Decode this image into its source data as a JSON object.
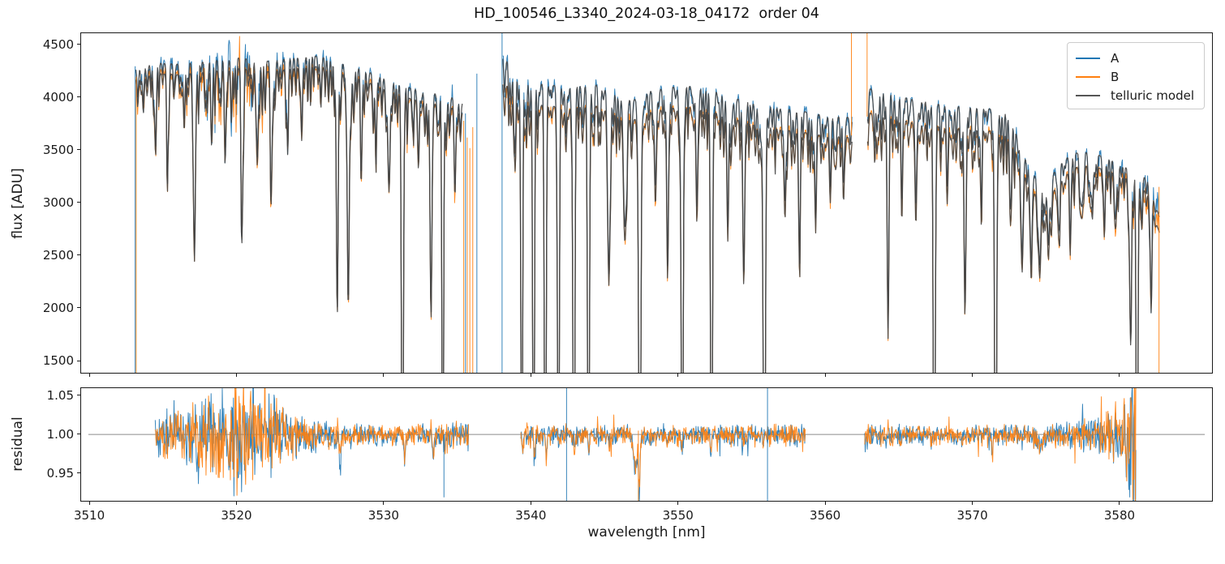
{
  "chart_data": {
    "type": "line",
    "title": "HD_100546_L3340_2024-03-18_04172  order 04",
    "xlabel": "wavelength [nm]",
    "grid": false,
    "colors": {
      "A": "#1f77b4",
      "B": "#ff7f0e",
      "telluric": "#454545",
      "hline": "#808080",
      "axes": "#1a1a1a"
    },
    "legend": {
      "position": "upper right",
      "entries": [
        {
          "label": "A",
          "color": "#1f77b4"
        },
        {
          "label": "B",
          "color": "#ff7f0e"
        },
        {
          "label": "telluric model",
          "color": "#555555"
        }
      ]
    },
    "panels": [
      {
        "id": "flux",
        "ylabel": "flux [ADU]",
        "xlim": [
          3509.39,
          3586.34
        ],
        "ylim": [
          1377,
          4615
        ],
        "yticks": [
          {
            "v": 1500,
            "label": "1500"
          },
          {
            "v": 2000,
            "label": "2000"
          },
          {
            "v": 2500,
            "label": "2500"
          },
          {
            "v": 3000,
            "label": "3000"
          },
          {
            "v": 3500,
            "label": "3500"
          },
          {
            "v": 4000,
            "label": "4000"
          },
          {
            "v": 4500,
            "label": "4500"
          }
        ],
        "xticks": [
          {
            "v": 3510,
            "label": "3510"
          },
          {
            "v": 3520,
            "label": "3520"
          },
          {
            "v": 3530,
            "label": "3530"
          },
          {
            "v": 3540,
            "label": "3540"
          },
          {
            "v": 3550,
            "label": "3550"
          },
          {
            "v": 3560,
            "label": "3560"
          },
          {
            "v": 3570,
            "label": "3570"
          },
          {
            "v": 3580,
            "label": "3580"
          }
        ],
        "show_xtick_labels": false
      },
      {
        "id": "residual",
        "ylabel": "residual",
        "xlim": [
          3509.39,
          3586.34
        ],
        "ylim": [
          0.9135,
          1.0604
        ],
        "hline": 1.0,
        "yticks": [
          {
            "v": 0.95,
            "label": "0.95"
          },
          {
            "v": 1.0,
            "label": "1.00"
          },
          {
            "v": 1.05,
            "label": "1.05"
          }
        ],
        "xticks": [
          {
            "v": 3510,
            "label": "3510"
          },
          {
            "v": 3520,
            "label": "3520"
          },
          {
            "v": 3530,
            "label": "3530"
          },
          {
            "v": 3540,
            "label": "3540"
          },
          {
            "v": 3550,
            "label": "3550"
          },
          {
            "v": 3560,
            "label": "3560"
          },
          {
            "v": 3570,
            "label": "3570"
          },
          {
            "v": 3580,
            "label": "3580"
          }
        ],
        "show_xtick_labels": true
      }
    ],
    "flux_segments": [
      {
        "range": [
          3513.0,
          3535.3
        ],
        "continuum_A": [
          [
            3513.0,
            4280
          ],
          [
            3514.5,
            4330
          ],
          [
            3516,
            4320
          ],
          [
            3518,
            4350
          ],
          [
            3520,
            4380
          ],
          [
            3522,
            4350
          ],
          [
            3524,
            4380
          ],
          [
            3525.5,
            4400
          ],
          [
            3527,
            4330
          ],
          [
            3528.5,
            4270
          ],
          [
            3530,
            4180
          ],
          [
            3531.5,
            4100
          ],
          [
            3533,
            4050
          ],
          [
            3534.3,
            4020
          ],
          [
            3535.3,
            3950
          ]
        ],
        "continuum_B": [
          [
            3513.0,
            4180
          ],
          [
            3514.5,
            4230
          ],
          [
            3516,
            4220
          ],
          [
            3518,
            4250
          ],
          [
            3520,
            4280
          ],
          [
            3522,
            4250
          ],
          [
            3524,
            4280
          ],
          [
            3525.5,
            4300
          ],
          [
            3527,
            4230
          ],
          [
            3528.5,
            4170
          ],
          [
            3530,
            4080
          ],
          [
            3531.5,
            4000
          ],
          [
            3533,
            3950
          ],
          [
            3534.3,
            3920
          ],
          [
            3535.3,
            3860
          ]
        ]
      },
      {
        "range": [
          3538.05,
          3561.9
        ],
        "continuum_A": [
          [
            3538.05,
            4400
          ],
          [
            3538.6,
            4300
          ],
          [
            3539.3,
            4180
          ],
          [
            3541,
            4120
          ],
          [
            3543,
            4110
          ],
          [
            3544.5,
            4120
          ],
          [
            3546,
            4020
          ],
          [
            3547,
            3980
          ],
          [
            3548,
            4060
          ],
          [
            3549.5,
            4100
          ],
          [
            3551,
            4110
          ],
          [
            3552.5,
            4060
          ],
          [
            3554,
            3990
          ],
          [
            3555.5,
            3950
          ],
          [
            3557,
            3900
          ],
          [
            3558.5,
            3870
          ],
          [
            3560,
            3830
          ],
          [
            3561.9,
            3810
          ]
        ],
        "continuum_B": [
          [
            3538.05,
            4150
          ],
          [
            3538.6,
            4080
          ],
          [
            3539.3,
            3980
          ],
          [
            3541,
            3920
          ],
          [
            3543,
            3910
          ],
          [
            3544.5,
            3920
          ],
          [
            3546,
            3830
          ],
          [
            3547,
            3790
          ],
          [
            3548,
            3860
          ],
          [
            3549.5,
            3900
          ],
          [
            3551,
            3910
          ],
          [
            3552.5,
            3860
          ],
          [
            3554,
            3790
          ],
          [
            3555.5,
            3750
          ],
          [
            3557,
            3700
          ],
          [
            3558.5,
            3670
          ],
          [
            3560,
            3640
          ],
          [
            3561.9,
            3620
          ]
        ]
      },
      {
        "range": [
          3562.95,
          3582.9
        ],
        "continuum_A": [
          [
            3562.95,
            4090
          ],
          [
            3564,
            4060
          ],
          [
            3565.5,
            4000
          ],
          [
            3567,
            3960
          ],
          [
            3568.5,
            3920
          ],
          [
            3570,
            3910
          ],
          [
            3571.5,
            3890
          ],
          [
            3572.5,
            3840
          ],
          [
            3573.3,
            3600
          ],
          [
            3574,
            3300
          ],
          [
            3574.8,
            3200
          ],
          [
            3575.5,
            3250
          ],
          [
            3576.3,
            3400
          ],
          [
            3577,
            3470
          ],
          [
            3578,
            3480
          ],
          [
            3579,
            3440
          ],
          [
            3580,
            3380
          ],
          [
            3581,
            3300
          ],
          [
            3582,
            3230
          ],
          [
            3582.9,
            2850
          ]
        ],
        "continuum_B": [
          [
            3562.95,
            3860
          ],
          [
            3564,
            3830
          ],
          [
            3565.5,
            3780
          ],
          [
            3567,
            3740
          ],
          [
            3568.5,
            3710
          ],
          [
            3570,
            3700
          ],
          [
            3571.5,
            3680
          ],
          [
            3572.5,
            3630
          ],
          [
            3573.3,
            3420
          ],
          [
            3574,
            3130
          ],
          [
            3574.8,
            3030
          ],
          [
            3575.5,
            3080
          ],
          [
            3576.3,
            3230
          ],
          [
            3577,
            3330
          ],
          [
            3578,
            3350
          ],
          [
            3579,
            3320
          ],
          [
            3580,
            3270
          ],
          [
            3581,
            3200
          ],
          [
            3582,
            3100
          ],
          [
            3582.9,
            2700
          ]
        ]
      }
    ],
    "telluric_lines": [
      [
        3514.35,
        0.12,
        0.055
      ],
      [
        3515.15,
        0.2,
        0.05
      ],
      [
        3516.3,
        0.13,
        0.05
      ],
      [
        3517.0,
        0.42,
        0.065
      ],
      [
        3518.2,
        0.14,
        0.05
      ],
      [
        3519.1,
        0.17,
        0.05
      ],
      [
        3520.25,
        0.34,
        0.065
      ],
      [
        3521.3,
        0.2,
        0.055
      ],
      [
        3522.25,
        0.25,
        0.06
      ],
      [
        3523.35,
        0.14,
        0.05
      ],
      [
        3524.3,
        0.11,
        0.05
      ],
      [
        3526.75,
        0.48,
        0.06
      ],
      [
        3527.5,
        0.53,
        0.065
      ],
      [
        3528.4,
        0.18,
        0.055
      ],
      [
        3529.4,
        0.12,
        0.05
      ],
      [
        3530.3,
        0.22,
        0.06
      ],
      [
        3531.2,
        1.15,
        0.06
      ],
      [
        3532.3,
        0.15,
        0.05
      ],
      [
        3533.15,
        0.52,
        0.06
      ],
      [
        3533.95,
        1.15,
        0.05
      ],
      [
        3534.8,
        0.16,
        0.05
      ],
      [
        3538.9,
        0.18,
        0.05
      ],
      [
        3539.35,
        1.15,
        0.05
      ],
      [
        3540.15,
        1.15,
        0.055
      ],
      [
        3540.95,
        1.15,
        0.055
      ],
      [
        3541.85,
        1.15,
        0.055
      ],
      [
        3542.9,
        1.15,
        0.06
      ],
      [
        3543.9,
        1.15,
        0.06
      ],
      [
        3545.3,
        0.42,
        0.07
      ],
      [
        3546.4,
        0.3,
        0.1
      ],
      [
        3547.4,
        1.15,
        0.07
      ],
      [
        3548.5,
        0.15,
        0.06
      ],
      [
        3549.3,
        0.42,
        0.06
      ],
      [
        3550.3,
        1.15,
        0.06
      ],
      [
        3551.3,
        0.28,
        0.06
      ],
      [
        3552.3,
        1.15,
        0.06
      ],
      [
        3553.4,
        0.2,
        0.06
      ],
      [
        3554.5,
        0.35,
        0.07
      ],
      [
        3555.9,
        1.15,
        0.07
      ],
      [
        3557.3,
        0.2,
        0.06
      ],
      [
        3558.3,
        0.3,
        0.06
      ],
      [
        3559.4,
        0.18,
        0.06
      ],
      [
        3560.4,
        0.13,
        0.06
      ],
      [
        3561.3,
        0.11,
        0.05
      ],
      [
        3563.6,
        0.1,
        0.05
      ],
      [
        3564.35,
        0.52,
        0.06
      ],
      [
        3565.3,
        0.18,
        0.055
      ],
      [
        3566.25,
        0.26,
        0.06
      ],
      [
        3567.5,
        1.15,
        0.06
      ],
      [
        3568.4,
        0.18,
        0.055
      ],
      [
        3569.6,
        0.48,
        0.06
      ],
      [
        3570.7,
        0.17,
        0.055
      ],
      [
        3571.7,
        1.15,
        0.06
      ],
      [
        3572.7,
        0.22,
        0.06
      ],
      [
        3573.5,
        0.3,
        0.07
      ],
      [
        3574.1,
        0.2,
        0.07
      ],
      [
        3574.7,
        0.24,
        0.07
      ],
      [
        3575.3,
        0.2,
        0.07
      ],
      [
        3576.0,
        0.16,
        0.065
      ],
      [
        3576.8,
        0.13,
        0.06
      ],
      [
        3577.6,
        0.14,
        0.06
      ],
      [
        3578.3,
        0.15,
        0.06
      ],
      [
        3579.1,
        0.13,
        0.06
      ],
      [
        3579.9,
        0.15,
        0.06
      ],
      [
        3580.9,
        0.45,
        0.065
      ],
      [
        3581.35,
        1.15,
        0.055
      ],
      [
        3582.3,
        0.28,
        0.06
      ]
    ],
    "micro_lines": {
      "spacing": 0.22,
      "depth_min": 0.02,
      "depth_max": 0.12,
      "sigma_min": 0.03,
      "sigma_max": 0.055,
      "seed": 42
    },
    "noise": {
      "flux_step": 0.04,
      "seed_A": 101,
      "seed_B": 202,
      "amp_B_scale": 0.85,
      "flux_amp_A": [
        [
          3513,
          70
        ],
        [
          3515,
          60
        ],
        [
          3516.5,
          90
        ],
        [
          3518,
          150
        ],
        [
          3519.5,
          190
        ],
        [
          3521,
          190
        ],
        [
          3522,
          120
        ],
        [
          3523.5,
          70
        ],
        [
          3525,
          55
        ],
        [
          3527,
          45
        ],
        [
          3530,
          42
        ],
        [
          3533,
          45
        ],
        [
          3535.3,
          70
        ],
        [
          3538.05,
          80
        ],
        [
          3539.5,
          55
        ],
        [
          3542,
          45
        ],
        [
          3546,
          42
        ],
        [
          3550,
          42
        ],
        [
          3554,
          42
        ],
        [
          3558,
          45
        ],
        [
          3561.9,
          60
        ],
        [
          3563,
          60
        ],
        [
          3566,
          45
        ],
        [
          3570,
          42
        ],
        [
          3573,
          45
        ],
        [
          3576,
          48
        ],
        [
          3578,
          52
        ],
        [
          3579.5,
          60
        ],
        [
          3581,
          90
        ],
        [
          3582.9,
          160
        ]
      ],
      "residual_step": 0.035,
      "res_seed_A": 303,
      "res_seed_B": 404,
      "residual_amp": [
        [
          3514,
          0.016
        ],
        [
          3515.5,
          0.022
        ],
        [
          3517,
          0.032
        ],
        [
          3518.5,
          0.042
        ],
        [
          3520,
          0.05
        ],
        [
          3521.5,
          0.045
        ],
        [
          3523,
          0.022
        ],
        [
          3524.5,
          0.014
        ],
        [
          3526,
          0.011
        ],
        [
          3528,
          0.009
        ],
        [
          3531,
          0.009
        ],
        [
          3533.5,
          0.01
        ],
        [
          3535.6,
          0.013
        ],
        [
          3539.2,
          0.012
        ],
        [
          3541,
          0.009
        ],
        [
          3544,
          0.008
        ],
        [
          3548,
          0.009
        ],
        [
          3552,
          0.009
        ],
        [
          3556,
          0.009
        ],
        [
          3558.8,
          0.01
        ],
        [
          3562.9,
          0.011
        ],
        [
          3565,
          0.009
        ],
        [
          3569,
          0.008
        ],
        [
          3573,
          0.009
        ],
        [
          3575.5,
          0.01
        ],
        [
          3577.5,
          0.012
        ],
        [
          3579,
          0.016
        ],
        [
          3580.3,
          0.03
        ],
        [
          3581,
          0.05
        ],
        [
          3581.6,
          0.065
        ]
      ]
    },
    "residual_segments": [
      [
        3514.0,
        3535.6
      ],
      [
        3539.2,
        3558.8
      ],
      [
        3562.9,
        3581.6
      ]
    ],
    "residual_dips": [
      {
        "x": 3547.1,
        "d": 0.045,
        "s": 0.14
      },
      {
        "x": 3547.35,
        "d": 0.05,
        "s": 0.045
      },
      {
        "x": 3575.0,
        "d": 0.012,
        "s": 0.2
      }
    ],
    "flux_spikes": [
      {
        "w": 3512.95,
        "series": "A",
        "y1": "min",
        "y2": 4300
      },
      {
        "w": 3513.02,
        "series": "B",
        "y1": "min",
        "y2": 4200
      },
      {
        "w": 3535.38,
        "series": "B",
        "y1": "min",
        "y2": 3780
      },
      {
        "w": 3535.5,
        "series": "A",
        "y1": "min",
        "y2": 3850
      },
      {
        "w": 3535.62,
        "series": "B",
        "y1": "min",
        "y2": 3620
      },
      {
        "w": 3535.8,
        "series": "B",
        "y1": "min",
        "y2": 3520
      },
      {
        "w": 3536.0,
        "series": "B",
        "y1": "min",
        "y2": 3720
      },
      {
        "w": 3536.28,
        "series": "A",
        "y1": "min",
        "y2": 4230
      },
      {
        "w": 3538.0,
        "series": "A",
        "y1": "min",
        "y2": "max"
      },
      {
        "w": 3561.85,
        "series": "B",
        "y1": 3640,
        "y2": "max"
      },
      {
        "w": 3562.92,
        "series": "B",
        "y1": 3820,
        "y2": "max"
      },
      {
        "w": 3582.85,
        "series": "B",
        "y1": "min",
        "y2": 3150
      }
    ],
    "residual_spikes": [
      {
        "w": 3542.35,
        "series": "A",
        "y1": "min",
        "y2": "max"
      },
      {
        "w": 3547.3,
        "series": "B",
        "y1": "min",
        "y2": 1.005
      },
      {
        "w": 3556.2,
        "series": "A",
        "y1": "min",
        "y2": "max"
      },
      {
        "w": 3533.9,
        "series": "A",
        "y1": 0.918,
        "y2": 1.0
      }
    ]
  }
}
